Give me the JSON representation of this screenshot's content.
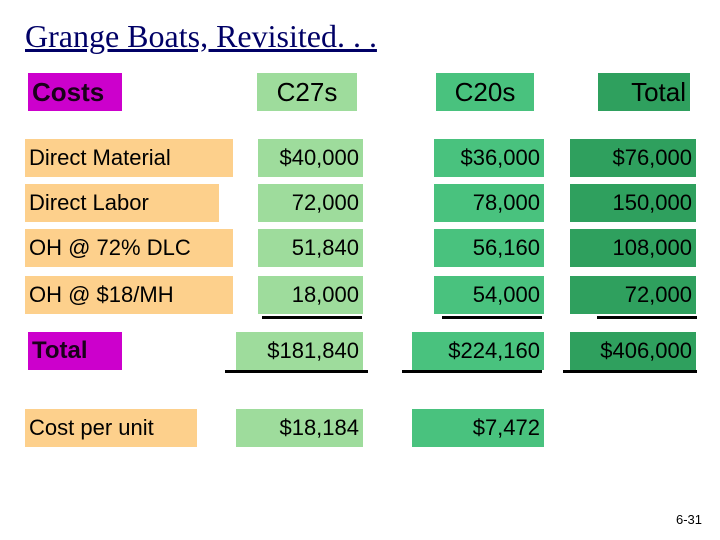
{
  "title": "Grange Boats, Revisited. . .",
  "headers": {
    "costs": "Costs",
    "c27s": "C27s",
    "c20s": "C20s",
    "total": "Total"
  },
  "rows": [
    {
      "label": "Direct Material",
      "c27s": "$40,000",
      "c20s": "$36,000",
      "total": "$76,000"
    },
    {
      "label": "Direct Labor",
      "c27s": "72,000",
      "c20s": "78,000",
      "total": "150,000"
    },
    {
      "label": "OH @ 72% DLC",
      "c27s": "51,840",
      "c20s": "56,160",
      "total": "108,000"
    },
    {
      "label": "OH @ $18/MH",
      "c27s": "18,000",
      "c20s": "54,000",
      "total": "72,000"
    }
  ],
  "total_row": {
    "label": "Total",
    "c27s": "$181,840",
    "c20s": "$224,160",
    "total": "$406,000"
  },
  "unit_row": {
    "label": "Cost per unit",
    "c27s": "$18,184",
    "c20s": "$7,472"
  },
  "page_number": "6-31",
  "colors": {
    "title": "#000066",
    "costs_label": "#cc00cc",
    "row_label": "#fdd08c",
    "c27s_col": "#9edc9c",
    "c20s_col": "#49c27e",
    "total_col": "#2fa05e"
  }
}
